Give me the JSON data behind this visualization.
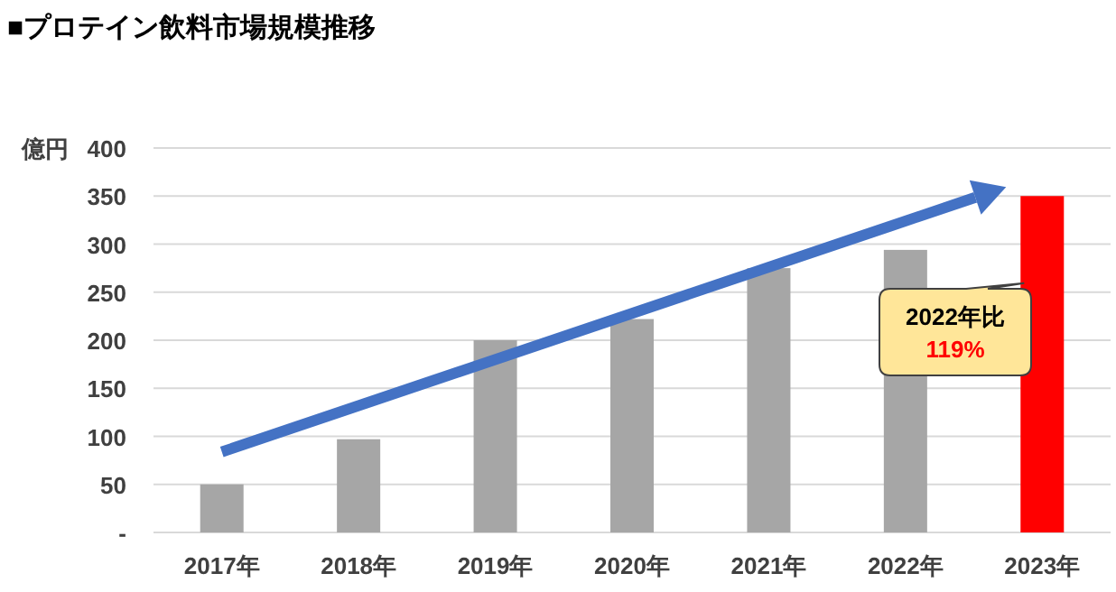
{
  "chart_data": {
    "type": "bar",
    "title": "■プロテイン飲料市場規模推移",
    "ylabel": "億円",
    "categories": [
      "2017年",
      "2018年",
      "2019年",
      "2020年",
      "2021年",
      "2022年",
      "2023年"
    ],
    "values": [
      50,
      97,
      200,
      222,
      275,
      294,
      350
    ],
    "colors": [
      "#a6a6a6",
      "#a6a6a6",
      "#a6a6a6",
      "#a6a6a6",
      "#a6a6a6",
      "#a6a6a6",
      "#ff0000"
    ],
    "ylim": [
      0,
      400
    ],
    "yticks": [
      {
        "value": 0,
        "label": "-"
      },
      50,
      100,
      150,
      200,
      250,
      300,
      350,
      400
    ],
    "grid": "y",
    "annotations": [
      "2022年比",
      "119%"
    ]
  }
}
